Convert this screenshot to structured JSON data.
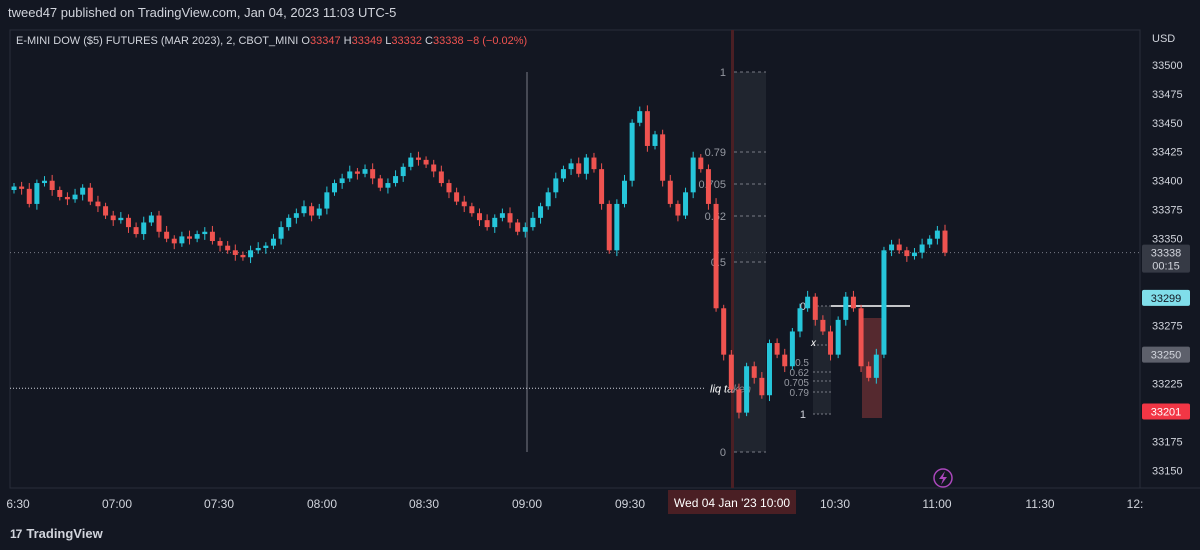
{
  "publish_line": "tweed47 published on TradingView.com, Jan 04, 2023 11:03 UTC-5",
  "branding": {
    "label": "TradingView"
  },
  "symbol_line": {
    "name": "E-MINI DOW ($5) FUTURES (MAR 2023), 2, CBOT_MINI",
    "o_label": "O",
    "o": "33347",
    "h_label": "H",
    "h": "33349",
    "l_label": "L",
    "l": "33332",
    "c_label": "C",
    "c": "33338",
    "change": "−8 (−0.02%)"
  },
  "colors": {
    "background": "#131722",
    "up": "#26c6da",
    "down": "#ef5350",
    "text": "#d1d4dc",
    "grid": "#2a2e39"
  },
  "annotations": {
    "liq_taken": "liq taken",
    "x_mark": "x",
    "fib_main": [
      "1",
      "0.79",
      "0.705",
      "0.62",
      "0.5",
      "0"
    ],
    "fib_small": [
      "0",
      "0.5",
      "0.62",
      "0.705",
      "0.79",
      "1"
    ]
  },
  "price_tags": [
    {
      "label": "33338",
      "sub": "00:15",
      "color": "#d1d4dc",
      "bg": "#363a45",
      "value": 33338
    },
    {
      "label": "33299",
      "color": "#131722",
      "bg": "#80deea",
      "value": 33299
    },
    {
      "label": "33250",
      "color": "#d1d4dc",
      "bg": "#5d606b",
      "value": 33250
    },
    {
      "label": "33201",
      "color": "#ffffff",
      "bg": "#f23645",
      "value": 33201
    }
  ],
  "crosshair_label": "Wed 04 Jan '23  10:00",
  "chart_data": {
    "type": "candlestick",
    "title": "E-MINI DOW ($5) FUTURES (MAR 2023), 2, CBOT_MINI",
    "currency": "USD",
    "y_ticks": [
      "33500",
      "33475",
      "33450",
      "33425",
      "33400",
      "33375",
      "33350",
      "33325",
      "33300",
      "33275",
      "33250",
      "33225",
      "33200",
      "33175",
      "33150"
    ],
    "ylim": [
      33135,
      33530
    ],
    "x_ticks": [
      "6:30",
      "07:00",
      "07:30",
      "08:00",
      "08:30",
      "09:00",
      "09:30",
      "10:00",
      "10:30",
      "11:00",
      "11:30",
      "12:"
    ],
    "grid": true,
    "candles_close": [
      33395,
      33393,
      33380,
      33398,
      33400,
      33392,
      33386,
      33384,
      33388,
      33394,
      33382,
      33378,
      33370,
      33366,
      33368,
      33360,
      33354,
      33364,
      33370,
      33356,
      33350,
      33346,
      33352,
      33350,
      33354,
      33356,
      33348,
      33344,
      33340,
      33336,
      33334,
      33340,
      33342,
      33344,
      33350,
      33360,
      33368,
      33372,
      33378,
      33370,
      33376,
      33390,
      33398,
      33402,
      33408,
      33406,
      33410,
      33402,
      33394,
      33398,
      33404,
      33412,
      33420,
      33418,
      33414,
      33408,
      33398,
      33390,
      33382,
      33378,
      33372,
      33366,
      33360,
      33368,
      33372,
      33364,
      33356,
      33360,
      33368,
      33378,
      33390,
      33402,
      33410,
      33415,
      33406,
      33420,
      33410,
      33380,
      33340,
      33380,
      33400,
      33450,
      33460,
      33430,
      33440,
      33400,
      33380,
      33370,
      33390,
      33420,
      33410,
      33380,
      33290,
      33250,
      33220,
      33200,
      33240,
      33230,
      33215,
      33260,
      33250,
      33240,
      33270,
      33290,
      33300,
      33280,
      33270,
      33250,
      33280,
      33300,
      33290,
      33240,
      33230,
      33250,
      33340,
      33345,
      33340,
      33335,
      33338,
      33345,
      33350,
      33357,
      33338
    ]
  }
}
